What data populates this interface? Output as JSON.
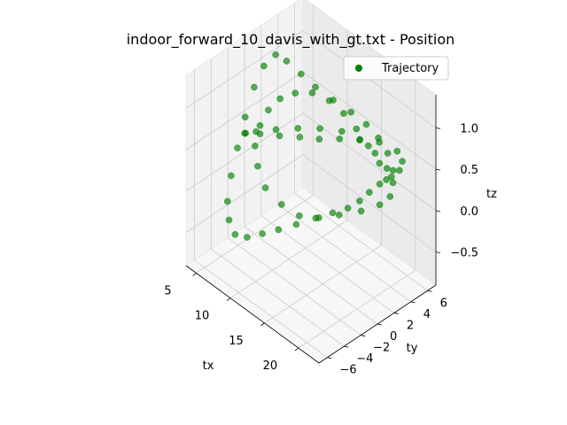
{
  "chart_data": {
    "type": "scatter",
    "projection": "3d",
    "title": "indoor_forward_10_davis_with_gt.txt - Position",
    "xlabel": "tx",
    "ylabel": "ty",
    "zlabel": "tz",
    "xlim": [
      3.5,
      23
    ],
    "ylim": [
      -7,
      7
    ],
    "zlim": [
      -0.9,
      1.4
    ],
    "xticks": [
      5,
      10,
      15,
      20
    ],
    "yticks": [
      -6,
      -4,
      -2,
      0,
      2,
      4,
      6
    ],
    "zticks": [
      -0.5,
      0.0,
      0.5,
      1.0
    ],
    "xtick_labels": [
      "5",
      "10",
      "15",
      "20"
    ],
    "ytick_labels": [
      "−6",
      "−4",
      "−2",
      "0",
      "2",
      "4",
      "6"
    ],
    "ztick_labels": [
      "−0.5",
      "0.0",
      "0.5",
      "1.0"
    ],
    "grid": true,
    "legend": {
      "position": "top-right",
      "entries": [
        "Trajectory"
      ]
    },
    "series": [
      {
        "name": "Trajectory",
        "color": "#008000",
        "marker": "o",
        "points": [
          [
            21.0,
            3.5,
            0.6
          ],
          [
            19.0,
            4.5,
            0.62
          ],
          [
            17.0,
            5.0,
            0.65
          ],
          [
            15.0,
            5.2,
            0.68
          ],
          [
            13.0,
            5.0,
            0.72
          ],
          [
            11.0,
            4.5,
            0.78
          ],
          [
            9.0,
            4.0,
            0.85
          ],
          [
            7.5,
            3.5,
            0.95
          ],
          [
            6.0,
            3.0,
            1.05
          ],
          [
            5.0,
            2.5,
            1.1
          ],
          [
            4.5,
            1.5,
            1.0
          ],
          [
            4.3,
            0.5,
            0.8
          ],
          [
            4.2,
            -0.5,
            0.5
          ],
          [
            4.3,
            -1.5,
            0.2
          ],
          [
            4.6,
            -2.5,
            -0.05
          ],
          [
            5.3,
            -3.5,
            -0.25
          ],
          [
            6.5,
            -4.3,
            -0.35
          ],
          [
            8.0,
            -4.8,
            -0.4
          ],
          [
            10.0,
            -5.0,
            -0.3
          ],
          [
            12.0,
            -4.8,
            -0.15
          ],
          [
            14.0,
            -4.5,
            0.0
          ],
          [
            16.0,
            -4.0,
            0.15
          ],
          [
            18.0,
            -3.3,
            0.3
          ],
          [
            19.5,
            -2.5,
            0.4
          ],
          [
            20.5,
            -1.5,
            0.45
          ],
          [
            21.0,
            -0.5,
            0.5
          ],
          [
            21.2,
            0.5,
            0.55
          ],
          [
            21.5,
            1.5,
            0.6
          ],
          [
            22.0,
            2.5,
            0.65
          ],
          [
            22.3,
            3.2,
            0.7
          ],
          [
            22.0,
            3.8,
            0.75
          ],
          [
            21.0,
            4.0,
            0.8
          ],
          [
            19.0,
            3.5,
            0.82
          ],
          [
            17.0,
            2.8,
            0.78
          ],
          [
            15.0,
            2.0,
            0.72
          ],
          [
            13.0,
            1.2,
            0.65
          ],
          [
            11.0,
            0.5,
            0.6
          ],
          [
            9.0,
            -0.3,
            0.55
          ],
          [
            7.0,
            -1.0,
            0.5
          ],
          [
            5.5,
            -1.5,
            0.45
          ],
          [
            5.0,
            -1.2,
            0.4
          ],
          [
            5.8,
            -0.5,
            0.42
          ],
          [
            7.5,
            0.5,
            0.48
          ],
          [
            9.5,
            1.5,
            0.55
          ],
          [
            11.5,
            2.5,
            0.6
          ],
          [
            13.5,
            3.5,
            0.62
          ],
          [
            15.5,
            4.0,
            0.6
          ],
          [
            17.5,
            4.2,
            0.55
          ],
          [
            19.5,
            4.0,
            0.5
          ],
          [
            21.0,
            3.5,
            0.45
          ],
          [
            21.8,
            2.5,
            0.4
          ],
          [
            21.5,
            1.5,
            0.35
          ],
          [
            20.0,
            0.5,
            0.25
          ],
          [
            18.0,
            -0.5,
            0.15
          ],
          [
            16.0,
            -1.3,
            0.05
          ],
          [
            14.0,
            -2.0,
            0.0
          ],
          [
            12.0,
            -2.5,
            0.05
          ],
          [
            10.0,
            -2.8,
            0.15
          ],
          [
            8.5,
            -2.5,
            0.3
          ],
          [
            7.5,
            -2.0,
            0.45
          ],
          [
            7.0,
            -1.0,
            0.6
          ],
          [
            7.0,
            0.0,
            0.72
          ],
          [
            7.5,
            1.0,
            0.82
          ],
          [
            8.5,
            2.0,
            0.88
          ],
          [
            10.0,
            2.8,
            0.92
          ],
          [
            12.0,
            3.2,
            0.92
          ],
          [
            14.0,
            3.3,
            0.88
          ],
          [
            16.0,
            3.2,
            0.82
          ],
          [
            18.0,
            3.0,
            0.75
          ],
          [
            20.0,
            2.7,
            0.68
          ],
          [
            21.5,
            2.3,
            0.6
          ]
        ]
      }
    ]
  }
}
